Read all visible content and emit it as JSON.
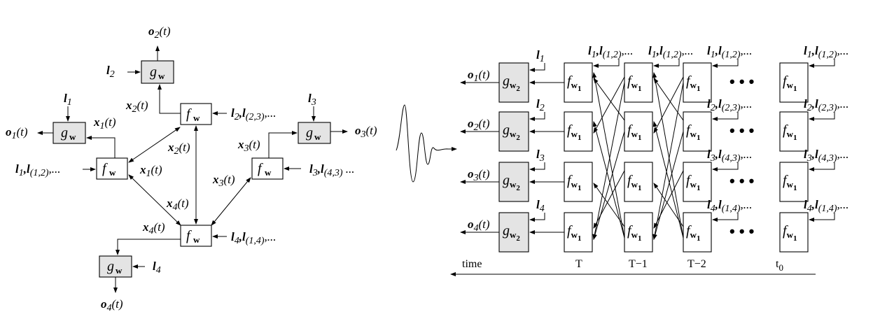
{
  "left_graph": {
    "nodes": {
      "f_label": "f",
      "f_sub": "w",
      "g_label": "g",
      "g_sub": "w"
    },
    "labels": {
      "o1": "o",
      "o1_sub": "1",
      "o1_t": "(t)",
      "o2": "o",
      "o2_sub": "2",
      "o2_t": "(t)",
      "o3": "o",
      "o3_sub": "3",
      "o3_t": "(t)",
      "o4": "o",
      "o4_sub": "4",
      "o4_t": "(t)",
      "l1": "l",
      "l1_sub": "1",
      "l2": "l",
      "l2_sub": "2",
      "l3": "l",
      "l3_sub": "3",
      "l4": "l",
      "l4_sub": "4",
      "in1": "l",
      "in1_sub1": "1",
      "in1_mid": ",l",
      "in1_sub2": "(1,2)",
      "in1_end": ",...",
      "in2": "l",
      "in2_sub1": "2",
      "in2_mid": ",l",
      "in2_sub2": "(2,3)",
      "in2_end": ",...",
      "in3": "l",
      "in3_sub1": "3",
      "in3_mid": ",l",
      "in3_sub2": "(4,3)",
      "in3_end": " ...",
      "in4": "l",
      "in4_sub1": "4",
      "in4_mid": ",l",
      "in4_sub2": "(1,4)",
      "in4_end": ",...",
      "x": "x",
      "t": "(t)",
      "s1": "1",
      "s2": "2",
      "s3": "3",
      "s4": "4"
    }
  },
  "right_graph": {
    "f_label": "f",
    "f_sub": "w",
    "f_sub2": "1",
    "g_label": "g",
    "g_sub": "w",
    "g_sub2": "2",
    "outputs": [
      "o",
      "o",
      "o",
      "o"
    ],
    "output_subs": [
      "1",
      "2",
      "3",
      "4"
    ],
    "output_t": "(t)",
    "l": "l",
    "l_subs": [
      "1",
      "2",
      "3",
      "4"
    ],
    "row_inputs": [
      {
        "a": "1",
        "b": "(1,2)",
        "end": ",..."
      },
      {
        "a": "2",
        "b": "(2,3)",
        "end": ",..."
      },
      {
        "a": "3",
        "b": "(4,3)",
        "end": ",..."
      },
      {
        "a": "4",
        "b": "(1,4)",
        "end": ",..."
      }
    ],
    "columns": [
      "T",
      "T−1",
      "T−2",
      "t"
    ],
    "t0_sub": "0",
    "ellipsis": "• • •",
    "time_label": "time"
  }
}
